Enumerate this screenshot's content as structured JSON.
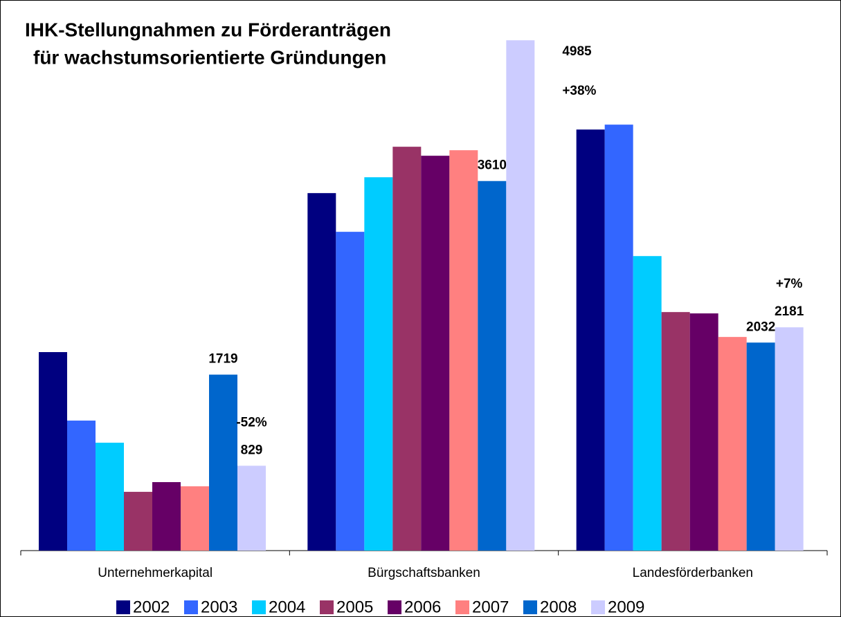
{
  "chart_data": {
    "type": "bar",
    "title": "IHK-Stellungnahmen zu Förderanträgen",
    "subtitle": "für wachstumsorientierte Gründungen",
    "categories": [
      "Unternehmerkapital",
      "Bürgschaftsbanken",
      "Landesförderbanken"
    ],
    "ylim": [
      0,
      5000
    ],
    "legend": "bottom",
    "series": [
      {
        "name": "2002",
        "color": "#000080",
        "values": [
          1939,
          3492,
          4113
        ]
      },
      {
        "name": "2003",
        "color": "#3366ff",
        "values": [
          1270,
          3114,
          4161
        ]
      },
      {
        "name": "2004",
        "color": "#00ccff",
        "values": [
          1054,
          3647,
          2877
        ]
      },
      {
        "name": "2005",
        "color": "#993366",
        "values": [
          574,
          3945,
          2330
        ]
      },
      {
        "name": "2006",
        "color": "#660066",
        "values": [
          669,
          3857,
          2317
        ]
      },
      {
        "name": "2007",
        "color": "#ff8080",
        "values": [
          628,
          3911,
          2087
        ]
      },
      {
        "name": "2008",
        "color": "#0066cc",
        "values": [
          1719,
          3610,
          2032
        ],
        "value_labels": [
          "1719",
          "3610",
          "2032"
        ]
      },
      {
        "name": "2009",
        "color": "#ccccff",
        "values": [
          829,
          4985,
          2181
        ],
        "value_labels": [
          "829",
          "4985",
          "2181"
        ]
      }
    ],
    "annotations": [
      {
        "text": "-52%",
        "series": "2009",
        "category": "Unternehmerkapital"
      },
      {
        "text": "+38%",
        "series": "2009",
        "category": "Bürgschaftsbanken"
      },
      {
        "text": "+7%",
        "series": "2009",
        "category": "Landesförderbanken"
      }
    ]
  }
}
